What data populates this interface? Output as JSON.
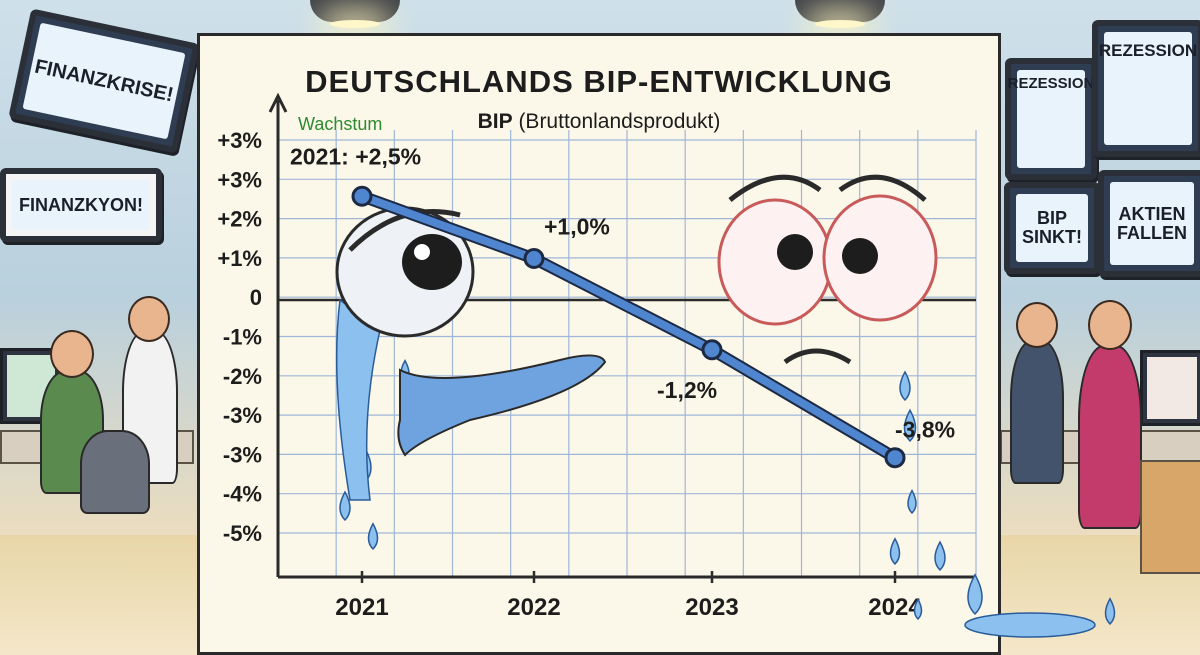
{
  "background": {
    "signs": [
      {
        "id": "finanzkrise",
        "text": "FINANZKRISE!"
      },
      {
        "id": "finanzkyon",
        "text": "FINANZKYON!"
      },
      {
        "id": "rezession-left",
        "text": "REZESSION"
      },
      {
        "id": "rezession-right",
        "text": "REZESSION"
      },
      {
        "id": "bip-sinkt",
        "text": "BIP SINKT!"
      },
      {
        "id": "aktien-fallen",
        "text": "AKTIEN FALLEN"
      }
    ]
  },
  "chart_data": {
    "type": "line",
    "title": "DEUTSCHLANDS BIP-ENTWICKLUNG",
    "subtitle_bold": "BIP",
    "subtitle_rest": " (Bruttonlandsprodukt)",
    "y_axis_note": "Wachstum",
    "y_tick_labels": [
      "+3%",
      "+3%",
      "+2%",
      "+1%",
      "0",
      "-1%",
      "-2%",
      "-3%",
      "-3%",
      "-4%",
      "-5%"
    ],
    "ylim": [
      -5.8,
      3.5
    ],
    "x": [
      "2021",
      "2022",
      "2023",
      "2024"
    ],
    "series": [
      {
        "values": [
          2.5,
          1.0,
          -1.2,
          -3.8
        ],
        "color": "#4f86cf"
      }
    ],
    "annotations": [
      {
        "text": "2021: +2,5%",
        "x": "2021",
        "y": 2.5
      },
      {
        "text": "+1,0%",
        "x": "2022",
        "y": 1.0
      },
      {
        "text": "-1,2%",
        "x": "2023",
        "y": -1.2
      },
      {
        "text": "-3,8%",
        "x": "2024",
        "y": -3.8
      }
    ],
    "grid": true,
    "colors": {
      "line": "#4f86cf",
      "grid": "#9fb7d9",
      "accent_green": "#2e8b2e"
    }
  }
}
